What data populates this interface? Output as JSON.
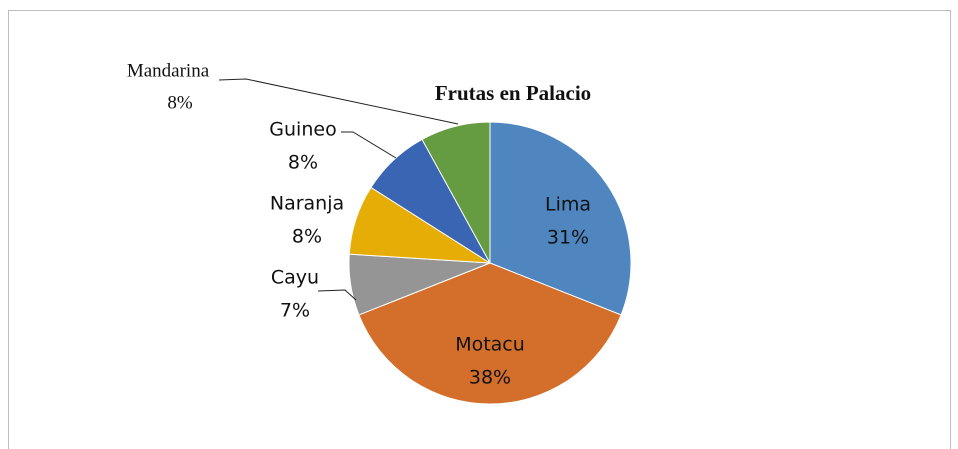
{
  "chart_data": {
    "type": "pie",
    "title": "Frutas en Palacio",
    "categories": [
      "Lima",
      "Motacu",
      "Cayu",
      "Naranja",
      "Guineo",
      "Mandarina"
    ],
    "values": [
      31,
      38,
      7,
      8,
      8,
      8
    ],
    "value_labels": [
      "31%",
      "38%",
      "7%",
      "8%",
      "8%",
      "8%"
    ],
    "colors": [
      "#4f86c0",
      "#d46f2b",
      "#959595",
      "#e5ad05",
      "#3a65b3",
      "#659c42"
    ]
  }
}
